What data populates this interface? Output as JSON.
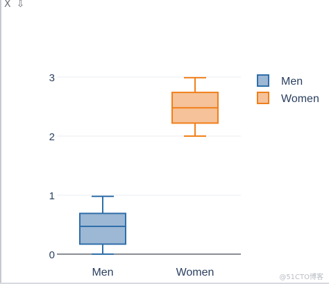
{
  "toolbar": {
    "close_label": "X",
    "download_label": "⇩"
  },
  "legend": {
    "items": [
      {
        "name": "Men",
        "fill": "#9db8d4",
        "stroke": "#2f6ea9"
      },
      {
        "name": "Women",
        "fill": "#f5c29a",
        "stroke": "#f07f1a"
      }
    ]
  },
  "watermark": "@51CTO博客",
  "chart_data": {
    "type": "box",
    "categories": [
      "Men",
      "Women"
    ],
    "series": [
      {
        "name": "Men",
        "min": 0,
        "q1": 0.17,
        "median": 0.47,
        "q3": 0.69,
        "max": 0.98
      },
      {
        "name": "Women",
        "min": 2.0,
        "q1": 2.22,
        "median": 2.48,
        "q3": 2.74,
        "max": 2.99
      }
    ],
    "ylim": [
      0,
      3
    ],
    "yticks": [
      0,
      1,
      2,
      3
    ],
    "grid": true,
    "legend_position": "top-right",
    "colors": {
      "Men": {
        "fill": "#9db8d4",
        "stroke": "#2f6ea9"
      },
      "Women": {
        "fill": "#f5c29a",
        "stroke": "#f07f1a"
      }
    }
  }
}
